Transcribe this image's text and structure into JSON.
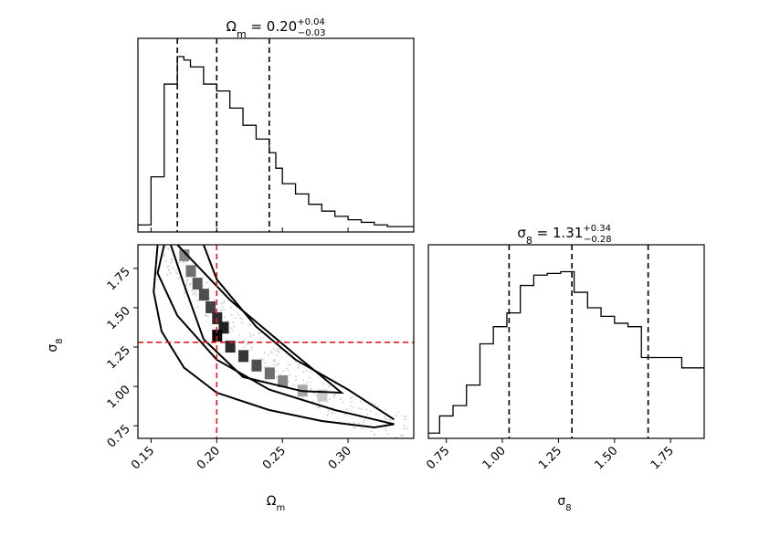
{
  "chart_data": [
    {
      "panel": "omega_m_histogram",
      "type": "histogram",
      "title": "Ω_m = 0.20 (+0.04 / −0.03)",
      "title_parts": {
        "symbol": "Ω",
        "sub": "m",
        "value": "0.20",
        "plus": "+0.04",
        "minus": "−0.03"
      },
      "xlim": [
        0.14,
        0.35
      ],
      "bin_edges": [
        0.14,
        0.15,
        0.16,
        0.17,
        0.175,
        0.18,
        0.19,
        0.2,
        0.21,
        0.22,
        0.23,
        0.24,
        0.245,
        0.25,
        0.26,
        0.27,
        0.28,
        0.29,
        0.3,
        0.31,
        0.32,
        0.33,
        0.35
      ],
      "counts": [
        0.02,
        0.3,
        0.84,
        1.0,
        0.98,
        0.94,
        0.84,
        0.8,
        0.7,
        0.6,
        0.52,
        0.44,
        0.35,
        0.26,
        0.2,
        0.14,
        0.1,
        0.07,
        0.05,
        0.035,
        0.02,
        0.01
      ],
      "quantiles": [
        0.17,
        0.2,
        0.24
      ]
    },
    {
      "panel": "sigma8_histogram",
      "type": "histogram",
      "title": "σ_8 = 1.31 (+0.34 / −0.28)",
      "title_parts": {
        "symbol": "σ",
        "sub": "8",
        "value": "1.31",
        "plus": "+0.34",
        "minus": "−0.28"
      },
      "xlim": [
        0.67,
        1.9
      ],
      "bin_edges": [
        0.67,
        0.72,
        0.78,
        0.84,
        0.9,
        0.96,
        1.02,
        1.08,
        1.14,
        1.2,
        1.26,
        1.32,
        1.38,
        1.44,
        1.5,
        1.56,
        1.62,
        1.68,
        1.8,
        1.9
      ],
      "counts": [
        0.02,
        0.12,
        0.18,
        0.3,
        0.54,
        0.64,
        0.72,
        0.88,
        0.94,
        0.95,
        0.96,
        0.84,
        0.75,
        0.7,
        0.66,
        0.64,
        0.46,
        0.46,
        0.4
      ],
      "quantiles": [
        1.03,
        1.31,
        1.65
      ]
    },
    {
      "panel": "joint_2d",
      "type": "heatmap",
      "xlim": [
        0.14,
        0.35
      ],
      "ylim": [
        0.67,
        1.9
      ],
      "xticks": [
        "0.15",
        "0.20",
        "0.25",
        "0.30"
      ],
      "yticks": [
        "0.75",
        "1.00",
        "1.25",
        "1.50",
        "1.75"
      ],
      "xlabel": "Ω_m",
      "ylabel": "σ_8",
      "truth": {
        "omega_m": 0.2,
        "sigma_8": 1.28
      },
      "cells": [
        {
          "x": 0.175,
          "y": 1.83,
          "w": 0.45
        },
        {
          "x": 0.18,
          "y": 1.73,
          "w": 0.55
        },
        {
          "x": 0.185,
          "y": 1.65,
          "w": 0.65
        },
        {
          "x": 0.19,
          "y": 1.58,
          "w": 0.7
        },
        {
          "x": 0.195,
          "y": 1.5,
          "w": 0.75
        },
        {
          "x": 0.2,
          "y": 1.43,
          "w": 0.85
        },
        {
          "x": 0.205,
          "y": 1.37,
          "w": 0.9
        },
        {
          "x": 0.2,
          "y": 1.32,
          "w": 1.0
        },
        {
          "x": 0.21,
          "y": 1.25,
          "w": 0.85
        },
        {
          "x": 0.22,
          "y": 1.19,
          "w": 0.8
        },
        {
          "x": 0.23,
          "y": 1.13,
          "w": 0.7
        },
        {
          "x": 0.24,
          "y": 1.08,
          "w": 0.55
        },
        {
          "x": 0.25,
          "y": 1.03,
          "w": 0.45
        },
        {
          "x": 0.265,
          "y": 0.97,
          "w": 0.3
        },
        {
          "x": 0.28,
          "y": 0.94,
          "w": 0.15
        }
      ],
      "contours": {
        "inner": [
          [
            0.17,
            1.9
          ],
          [
            0.21,
            1.55
          ],
          [
            0.26,
            1.2
          ],
          [
            0.295,
            0.96
          ],
          [
            0.265,
            0.97
          ],
          [
            0.22,
            1.06
          ],
          [
            0.19,
            1.3
          ],
          [
            0.175,
            1.65
          ],
          [
            0.165,
            1.9
          ]
        ],
        "outer": [
          [
            0.16,
            1.9
          ],
          [
            0.155,
            1.72
          ],
          [
            0.17,
            1.45
          ],
          [
            0.2,
            1.17
          ],
          [
            0.24,
            0.98
          ],
          [
            0.29,
            0.85
          ],
          [
            0.335,
            0.76
          ],
          [
            0.32,
            0.74
          ],
          [
            0.28,
            0.78
          ],
          [
            0.24,
            0.85
          ],
          [
            0.2,
            0.96
          ],
          [
            0.175,
            1.12
          ],
          [
            0.158,
            1.35
          ],
          [
            0.152,
            1.6
          ],
          [
            0.155,
            1.9
          ]
        ],
        "outer_right": [
          [
            0.19,
            1.9
          ],
          [
            0.2,
            1.68
          ],
          [
            0.23,
            1.38
          ],
          [
            0.26,
            1.17
          ],
          [
            0.3,
            0.98
          ],
          [
            0.335,
            0.79
          ]
        ]
      }
    }
  ]
}
